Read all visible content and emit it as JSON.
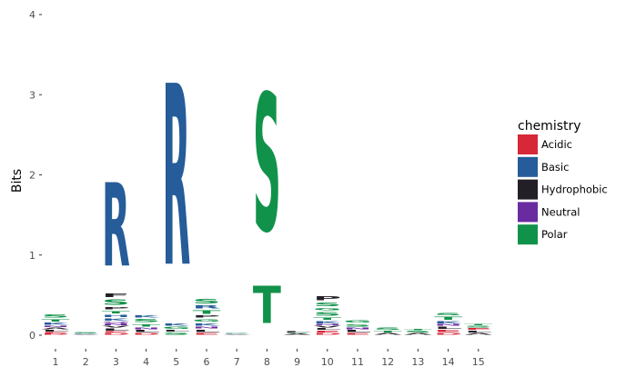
{
  "chart_data": {
    "type": "sequence-logo",
    "ylabel": "Bits",
    "ylim": [
      0,
      4
    ],
    "y_ticks": [
      "0",
      "1",
      "2",
      "3",
      "4"
    ],
    "x_ticks": [
      "1",
      "2",
      "3",
      "4",
      "5",
      "6",
      "7",
      "8",
      "9",
      "10",
      "11",
      "12",
      "13",
      "14",
      "15"
    ],
    "legend": {
      "title": "chemistry",
      "placement": "right",
      "entries": [
        {
          "label": "Acidic",
          "color": "#d62839"
        },
        {
          "label": "Basic",
          "color": "#255c99"
        },
        {
          "label": "Hydrophobic",
          "color": "#221f26"
        },
        {
          "label": "Neutral",
          "color": "#6a2aa0"
        },
        {
          "label": "Polar",
          "color": "#11924a"
        }
      ]
    },
    "positions": [
      {
        "pos": 1,
        "letters": [
          {
            "aa": "D",
            "group": "Acidic",
            "bits": 0.02
          },
          {
            "aa": "E",
            "group": "Acidic",
            "bits": 0.02
          },
          {
            "aa": "L",
            "group": "Hydrophobic",
            "bits": 0.03
          },
          {
            "aa": "A",
            "group": "Hydrophobic",
            "bits": 0.03
          },
          {
            "aa": "N",
            "group": "Neutral",
            "bits": 0.02
          },
          {
            "aa": "K",
            "group": "Basic",
            "bits": 0.04
          },
          {
            "aa": "T",
            "group": "Polar",
            "bits": 0.05
          },
          {
            "aa": "S",
            "group": "Polar",
            "bits": 0.06
          }
        ]
      },
      {
        "pos": 2,
        "letters": [
          {
            "aa": "A",
            "group": "Hydrophobic",
            "bits": 0.01
          },
          {
            "aa": "K",
            "group": "Basic",
            "bits": 0.01
          },
          {
            "aa": "S",
            "group": "Polar",
            "bits": 0.02
          }
        ]
      },
      {
        "pos": 3,
        "letters": [
          {
            "aa": "D",
            "group": "Acidic",
            "bits": 0.03
          },
          {
            "aa": "E",
            "group": "Acidic",
            "bits": 0.02
          },
          {
            "aa": "L",
            "group": "Hydrophobic",
            "bits": 0.04
          },
          {
            "aa": "V",
            "group": "Hydrophobic",
            "bits": 0.03
          },
          {
            "aa": "N",
            "group": "Neutral",
            "bits": 0.03
          },
          {
            "aa": "Q",
            "group": "Neutral",
            "bits": 0.02
          },
          {
            "aa": "K",
            "group": "Basic",
            "bits": 0.05
          },
          {
            "aa": "H",
            "group": "Basic",
            "bits": 0.04
          },
          {
            "aa": "T",
            "group": "Polar",
            "bits": 0.05
          },
          {
            "aa": "P",
            "group": "Hydrophobic",
            "bits": 0.05
          },
          {
            "aa": "S",
            "group": "Polar",
            "bits": 0.1
          },
          {
            "aa": "F",
            "group": "Hydrophobic",
            "bits": 0.07
          },
          {
            "aa": "R",
            "group": "Basic",
            "bits": 1.67
          }
        ]
      },
      {
        "pos": 4,
        "letters": [
          {
            "aa": "D",
            "group": "Acidic",
            "bits": 0.03
          },
          {
            "aa": "L",
            "group": "Hydrophobic",
            "bits": 0.04
          },
          {
            "aa": "N",
            "group": "Neutral",
            "bits": 0.03
          },
          {
            "aa": "T",
            "group": "Polar",
            "bits": 0.05
          },
          {
            "aa": "S",
            "group": "Polar",
            "bits": 0.06
          },
          {
            "aa": "K",
            "group": "Basic",
            "bits": 0.05
          }
        ]
      },
      {
        "pos": 5,
        "letters": [
          {
            "aa": "S",
            "group": "Polar",
            "bits": 0.04
          },
          {
            "aa": "L",
            "group": "Hydrophobic",
            "bits": 0.03
          },
          {
            "aa": "G",
            "group": "Polar",
            "bits": 0.04
          },
          {
            "aa": "K",
            "group": "Basic",
            "bits": 0.04
          },
          {
            "aa": "R",
            "group": "Basic",
            "bits": 3.62
          }
        ]
      },
      {
        "pos": 6,
        "letters": [
          {
            "aa": "E",
            "group": "Acidic",
            "bits": 0.03
          },
          {
            "aa": "L",
            "group": "Hydrophobic",
            "bits": 0.05
          },
          {
            "aa": "N",
            "group": "Neutral",
            "bits": 0.03
          },
          {
            "aa": "K",
            "group": "Basic",
            "bits": 0.05
          },
          {
            "aa": "G",
            "group": "Polar",
            "bits": 0.05
          },
          {
            "aa": "P",
            "group": "Hydrophobic",
            "bits": 0.04
          },
          {
            "aa": "T",
            "group": "Polar",
            "bits": 0.07
          },
          {
            "aa": "R",
            "group": "Basic",
            "bits": 0.06
          },
          {
            "aa": "S",
            "group": "Polar",
            "bits": 0.09
          }
        ]
      },
      {
        "pos": 7,
        "letters": [
          {
            "aa": "A",
            "group": "Hydrophobic",
            "bits": 0.01
          },
          {
            "aa": "K",
            "group": "Basic",
            "bits": 0.01
          },
          {
            "aa": "S",
            "group": "Polar",
            "bits": 0.01
          }
        ]
      },
      {
        "pos": 8,
        "letters": [
          {
            "aa": "T",
            "group": "Polar",
            "bits": 0.75
          },
          {
            "aa": "S",
            "group": "Polar",
            "bits": 2.75
          }
        ]
      },
      {
        "pos": 9,
        "letters": [
          {
            "aa": "A",
            "group": "Hydrophobic",
            "bits": 0.02
          },
          {
            "aa": "S",
            "group": "Polar",
            "bits": 0.01
          },
          {
            "aa": "L",
            "group": "Hydrophobic",
            "bits": 0.02
          }
        ]
      },
      {
        "pos": 10,
        "letters": [
          {
            "aa": "D",
            "group": "Acidic",
            "bits": 0.03
          },
          {
            "aa": "E",
            "group": "Acidic",
            "bits": 0.03
          },
          {
            "aa": "L",
            "group": "Hydrophobic",
            "bits": 0.03
          },
          {
            "aa": "V",
            "group": "Hydrophobic",
            "bits": 0.03
          },
          {
            "aa": "N",
            "group": "Neutral",
            "bits": 0.02
          },
          {
            "aa": "K",
            "group": "Basic",
            "bits": 0.04
          },
          {
            "aa": "T",
            "group": "Polar",
            "bits": 0.05
          },
          {
            "aa": "S",
            "group": "Polar",
            "bits": 0.07
          },
          {
            "aa": "G",
            "group": "Polar",
            "bits": 0.05
          },
          {
            "aa": "S",
            "group": "Polar",
            "bits": 0.07
          },
          {
            "aa": "P",
            "group": "Hydrophobic",
            "bits": 0.08
          }
        ]
      },
      {
        "pos": 11,
        "letters": [
          {
            "aa": "E",
            "group": "Acidic",
            "bits": 0.03
          },
          {
            "aa": "L",
            "group": "Hydrophobic",
            "bits": 0.04
          },
          {
            "aa": "N",
            "group": "Neutral",
            "bits": 0.03
          },
          {
            "aa": "S",
            "group": "Polar",
            "bits": 0.05
          },
          {
            "aa": "G",
            "group": "Polar",
            "bits": 0.04
          }
        ]
      },
      {
        "pos": 12,
        "letters": [
          {
            "aa": "A",
            "group": "Hydrophobic",
            "bits": 0.03
          },
          {
            "aa": "T",
            "group": "Polar",
            "bits": 0.03
          },
          {
            "aa": "S",
            "group": "Polar",
            "bits": 0.04
          }
        ]
      },
      {
        "pos": 13,
        "letters": [
          {
            "aa": "A",
            "group": "Hydrophobic",
            "bits": 0.03
          },
          {
            "aa": "S",
            "group": "Polar",
            "bits": 0.03
          },
          {
            "aa": "T",
            "group": "Polar",
            "bits": 0.02
          }
        ]
      },
      {
        "pos": 14,
        "letters": [
          {
            "aa": "D",
            "group": "Acidic",
            "bits": 0.03
          },
          {
            "aa": "E",
            "group": "Acidic",
            "bits": 0.04
          },
          {
            "aa": "L",
            "group": "Hydrophobic",
            "bits": 0.04
          },
          {
            "aa": "N",
            "group": "Neutral",
            "bits": 0.03
          },
          {
            "aa": "K",
            "group": "Basic",
            "bits": 0.04
          },
          {
            "aa": "T",
            "group": "Polar",
            "bits": 0.06
          },
          {
            "aa": "S",
            "group": "Polar",
            "bits": 0.05
          }
        ]
      },
      {
        "pos": 15,
        "letters": [
          {
            "aa": "A",
            "group": "Hydrophobic",
            "bits": 0.03
          },
          {
            "aa": "L",
            "group": "Hydrophobic",
            "bits": 0.03
          },
          {
            "aa": "E",
            "group": "Acidic",
            "bits": 0.03
          },
          {
            "aa": "S",
            "group": "Polar",
            "bits": 0.03
          },
          {
            "aa": "T",
            "group": "Polar",
            "bits": 0.02
          }
        ]
      }
    ]
  }
}
